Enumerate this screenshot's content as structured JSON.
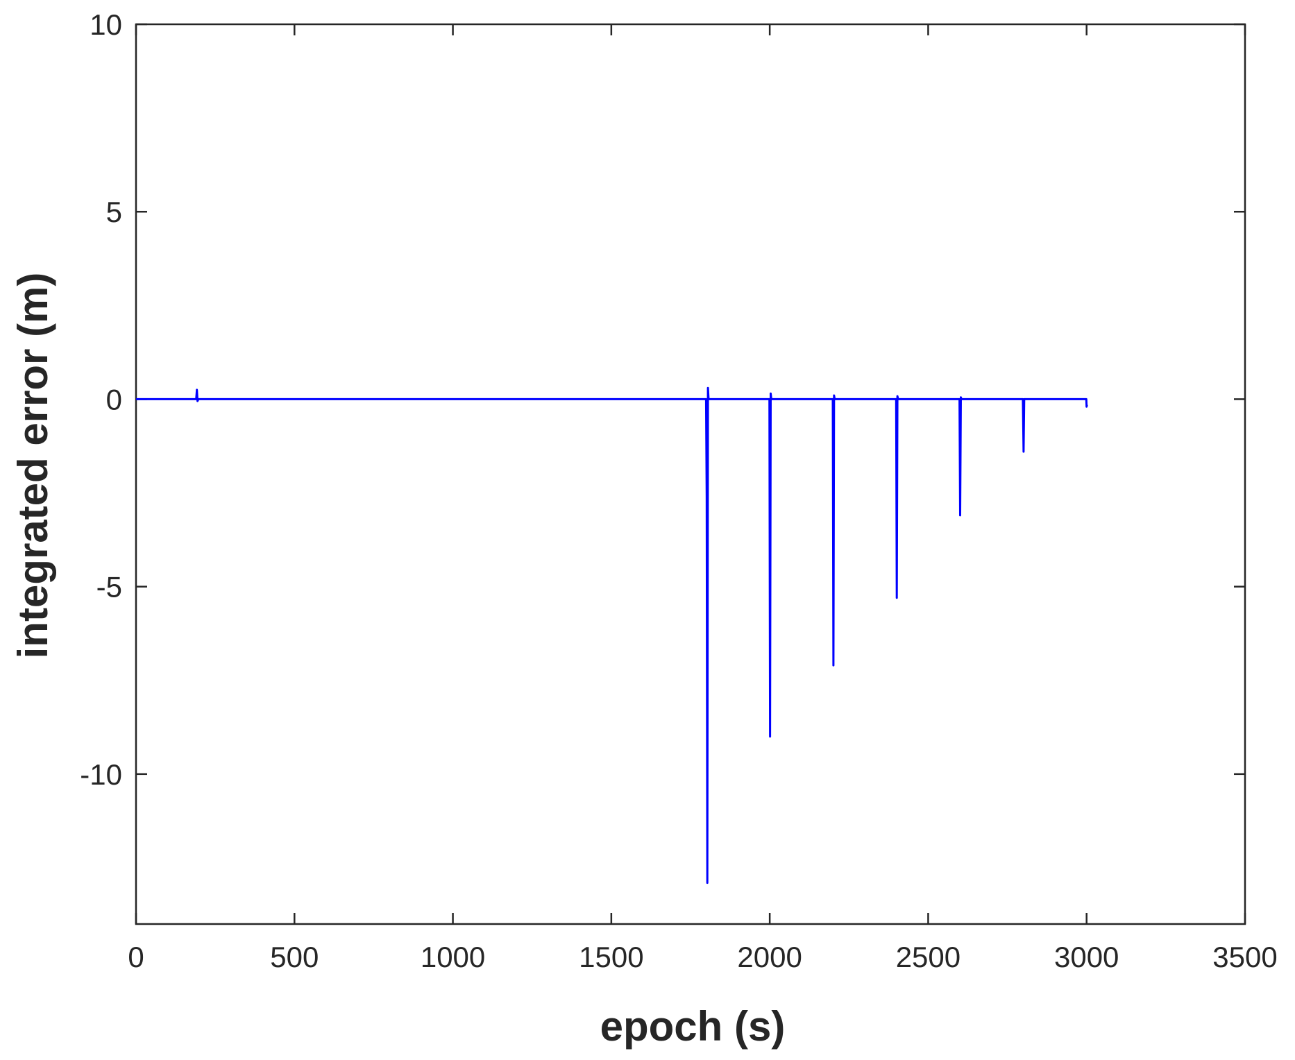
{
  "chart_data": {
    "type": "line",
    "title": "",
    "xlabel": "epoch (s)",
    "ylabel": "integrated error (m)",
    "xlim": [
      0,
      3500
    ],
    "ylim": [
      -14,
      10
    ],
    "xticks": [
      0,
      500,
      1000,
      1500,
      2000,
      2500,
      3000,
      3500
    ],
    "yticks": [
      10,
      5,
      0,
      -5,
      -10
    ],
    "xtick_labels": [
      "0",
      "500",
      "1000",
      "1500",
      "2000",
      "2500",
      "3000",
      "3500"
    ],
    "ytick_labels": [
      "10",
      "5",
      "0",
      "-5",
      "-10"
    ],
    "grid": false,
    "legend": "none",
    "color": "#0000ff",
    "series": [
      {
        "x": [
          0,
          190,
          192,
          194,
          197,
          500,
          1000,
          1500,
          1799,
          1801,
          1803,
          1805,
          1807,
          1809,
          1900,
          1999,
          2001,
          2003,
          2005,
          2007,
          2100,
          2199,
          2201,
          2203,
          2205,
          2207,
          2300,
          2399,
          2401,
          2403,
          2405,
          2407,
          2500,
          2599,
          2601,
          2603,
          2605,
          2607,
          2700,
          2799,
          2801,
          2803,
          2900,
          2999,
          3000,
          3001
        ],
        "y": [
          0,
          0,
          0.25,
          -0.05,
          0,
          0,
          0,
          0,
          0,
          -2.6,
          -12.9,
          0.3,
          0,
          0,
          0,
          0,
          -9.0,
          0.15,
          0,
          0,
          0,
          0,
          -7.1,
          0.1,
          0,
          0,
          0,
          0,
          -5.3,
          0.08,
          0,
          0,
          0,
          0,
          -3.1,
          0.05,
          0,
          0,
          0,
          0,
          -1.4,
          0,
          0,
          0,
          -0.2,
          -0.15
        ]
      }
    ]
  }
}
